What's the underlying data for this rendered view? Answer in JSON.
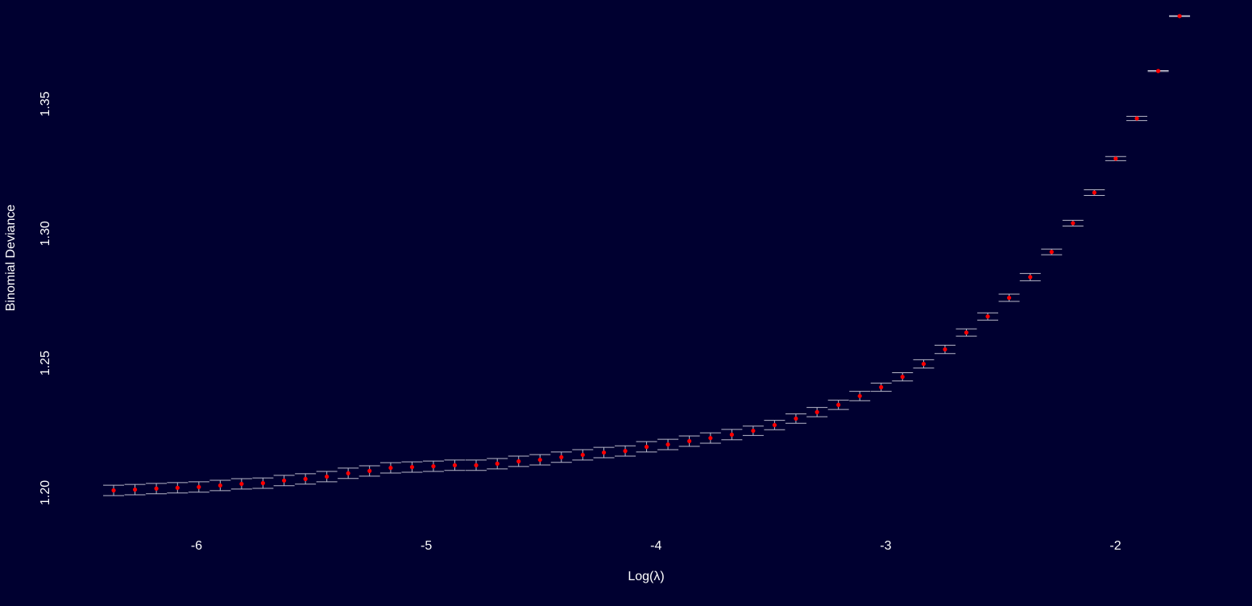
{
  "chart_data": {
    "type": "errorbar",
    "xlabel": "Log(λ)",
    "ylabel": "Binomial Deviance",
    "x": [
      -6.361,
      -6.268,
      -6.175,
      -6.083,
      -5.99,
      -5.897,
      -5.804,
      -5.711,
      -5.619,
      -5.526,
      -5.433,
      -5.34,
      -5.247,
      -5.155,
      -5.062,
      -4.969,
      -4.876,
      -4.783,
      -4.691,
      -4.598,
      -4.505,
      -4.412,
      -4.319,
      -4.227,
      -4.134,
      -4.041,
      -3.948,
      -3.855,
      -3.763,
      -3.67,
      -3.577,
      -3.484,
      -3.391,
      -3.299,
      -3.206,
      -3.113,
      -3.02,
      -2.927,
      -2.835,
      -2.742,
      -2.649,
      -2.556,
      -2.463,
      -2.371,
      -2.278,
      -2.185,
      -2.092,
      -1.999,
      -1.907,
      -1.814,
      -1.721
    ],
    "values": [
      1.2009,
      1.2012,
      1.2016,
      1.2019,
      1.2022,
      1.2028,
      1.2034,
      1.2037,
      1.2047,
      1.2053,
      1.2062,
      1.2075,
      1.2084,
      1.2096,
      1.2099,
      1.2102,
      1.2106,
      1.2106,
      1.2112,
      1.2121,
      1.2127,
      1.2137,
      1.2146,
      1.2155,
      1.2161,
      1.2177,
      1.2186,
      1.2199,
      1.2211,
      1.2224,
      1.2239,
      1.2261,
      1.2286,
      1.2311,
      1.2339,
      1.2373,
      1.2407,
      1.2447,
      1.2497,
      1.2553,
      1.2618,
      1.268,
      1.2752,
      1.2832,
      1.2929,
      1.304,
      1.3158,
      1.3289,
      1.3444,
      1.3627,
      1.3839
    ],
    "errors": [
      0.002,
      0.002,
      0.002,
      0.002,
      0.002,
      0.002,
      0.002,
      0.002,
      0.002,
      0.002,
      0.002,
      0.002,
      0.002,
      0.002,
      0.002,
      0.002,
      0.002,
      0.002,
      0.002,
      0.002,
      0.002,
      0.002,
      0.002,
      0.002,
      0.002,
      0.002,
      0.002,
      0.002,
      0.002,
      0.002,
      0.0018,
      0.0018,
      0.0018,
      0.0018,
      0.0018,
      0.0018,
      0.0016,
      0.0016,
      0.0016,
      0.0016,
      0.0014,
      0.0014,
      0.0014,
      0.0014,
      0.0011,
      0.0011,
      0.0011,
      0.0008,
      0.0008,
      0.0002,
      0.0002
    ],
    "point_color": "#ff0000",
    "bar_color": "#b8b8c8",
    "xlim": [
      -6.54,
      -1.56
    ],
    "ylim": [
      1.188,
      1.387
    ],
    "xticks": [
      -6,
      -5,
      -4,
      -3,
      -2
    ],
    "yticks": [
      {
        "value": 1.2,
        "label": "1.20"
      },
      {
        "value": 1.25,
        "label": "1.25"
      },
      {
        "value": 1.3,
        "label": "1.30"
      },
      {
        "value": 1.35,
        "label": "1.35"
      }
    ]
  }
}
